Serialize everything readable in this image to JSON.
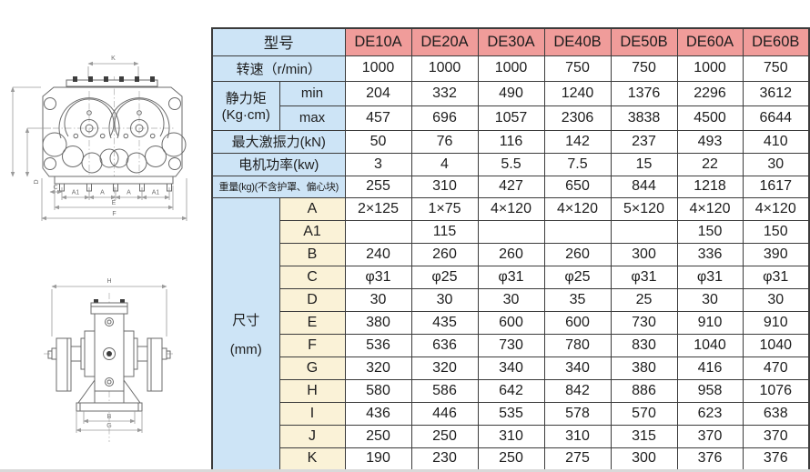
{
  "colors": {
    "header_pink": "#f09c9a",
    "label_blue": "#cde4f6",
    "dim_cream": "#faf2d7",
    "border": "#3b3b3b"
  },
  "table": {
    "model_label": "型号",
    "models": [
      "DE10A",
      "DE20A",
      "DE30A",
      "DE40B",
      "DE50B",
      "DE60A",
      "DE60B"
    ],
    "speed": {
      "label": "转速（r/min）",
      "values": [
        "1000",
        "1000",
        "1000",
        "750",
        "750",
        "1000",
        "750"
      ]
    },
    "moment": {
      "label": "静力矩",
      "unit": "(Kg·cm)",
      "rows": [
        {
          "label": "min",
          "values": [
            "204",
            "332",
            "490",
            "1240",
            "1376",
            "2296",
            "3612"
          ]
        },
        {
          "label": "max",
          "values": [
            "457",
            "696",
            "1057",
            "2306",
            "3838",
            "4500",
            "6644"
          ]
        }
      ]
    },
    "excitation": {
      "label": "最大激振力(kN)",
      "values": [
        "50",
        "76",
        "116",
        "142",
        "237",
        "493",
        "410"
      ]
    },
    "power": {
      "label": "电机功率(kw)",
      "values": [
        "3",
        "4",
        "5.5",
        "7.5",
        "15",
        "22",
        "30"
      ]
    },
    "weight": {
      "label": "重量(kg)(不含护罩、偏心块)",
      "values": [
        "255",
        "310",
        "427",
        "650",
        "844",
        "1218",
        "1617"
      ]
    },
    "dims": {
      "label": "尺寸",
      "unit": "(mm)",
      "rows": [
        {
          "label": "A",
          "values": [
            "2×125",
            "1×75",
            "4×120",
            "4×120",
            "5×120",
            "4×120",
            "4×120"
          ]
        },
        {
          "label": "A1",
          "values": [
            "",
            "115",
            "",
            "",
            "",
            "150",
            "150"
          ]
        },
        {
          "label": "B",
          "values": [
            "240",
            "260",
            "260",
            "260",
            "300",
            "336",
            "390"
          ]
        },
        {
          "label": "C",
          "values": [
            "φ31",
            "φ25",
            "φ31",
            "φ25",
            "φ31",
            "φ31",
            "φ31"
          ]
        },
        {
          "label": "D",
          "values": [
            "30",
            "30",
            "30",
            "35",
            "25",
            "30",
            "30"
          ]
        },
        {
          "label": "E",
          "values": [
            "380",
            "435",
            "600",
            "600",
            "730",
            "910",
            "910"
          ]
        },
        {
          "label": "F",
          "values": [
            "536",
            "636",
            "730",
            "780",
            "830",
            "1040",
            "1040"
          ]
        },
        {
          "label": "G",
          "values": [
            "320",
            "320",
            "340",
            "340",
            "380",
            "416",
            "470"
          ]
        },
        {
          "label": "H",
          "values": [
            "580",
            "586",
            "642",
            "842",
            "886",
            "958",
            "1076"
          ]
        },
        {
          "label": "I",
          "values": [
            "436",
            "446",
            "535",
            "578",
            "570",
            "623",
            "638"
          ]
        },
        {
          "label": "J",
          "values": [
            "250",
            "250",
            "310",
            "310",
            "315",
            "370",
            "370"
          ]
        },
        {
          "label": "K",
          "values": [
            "190",
            "230",
            "250",
            "275",
            "300",
            "376",
            "376"
          ]
        }
      ]
    }
  },
  "drawings": {
    "top_view": {
      "labels": {
        "k": "K",
        "c": "C",
        "d": "D",
        "a1l": "A1",
        "al": "A",
        "ar": "A",
        "a1r": "A1",
        "e": "E",
        "f": "F"
      }
    },
    "front_view": {
      "labels": {
        "h": "H",
        "b": "B",
        "g": "G"
      }
    }
  }
}
